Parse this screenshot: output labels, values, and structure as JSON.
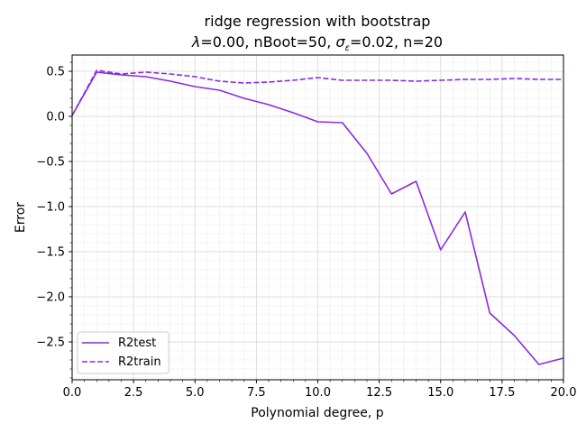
{
  "chart_data": {
    "type": "line",
    "title_line1": "ridge regression with bootstrap",
    "title_line2": "λ=0.00,  nBoot=50,  σε=0.02,  n=20",
    "title_lambda_sym": "λ",
    "title_lambda_rest": "=0.00,  nBoot=50,  ",
    "title_sigma_sym": "σ",
    "title_sigma_sub": "ε",
    "title_sigma_rest": "=0.02,  n=20",
    "xlabel": "Polynomial degree, p",
    "ylabel": "Error",
    "xlim": [
      0,
      20
    ],
    "ylim": [
      -2.92,
      0.68
    ],
    "xticks": [
      0.0,
      2.5,
      5.0,
      7.5,
      10.0,
      12.5,
      15.0,
      17.5,
      20.0
    ],
    "xtick_labels": [
      "0.0",
      "2.5",
      "5.0",
      "7.5",
      "10.0",
      "12.5",
      "15.0",
      "17.5",
      "20.0"
    ],
    "yticks": [
      0.5,
      0.0,
      -0.5,
      -1.0,
      -1.5,
      -2.0,
      -2.5
    ],
    "ytick_labels": [
      "0.5",
      "0.0",
      "−0.5",
      "−1.0",
      "−1.5",
      "−2.0",
      "−2.5"
    ],
    "grid": true,
    "legend_position": "lower-left",
    "color": "#8a2be2",
    "x": [
      0,
      1,
      2,
      3,
      4,
      5,
      6,
      7,
      8,
      9,
      10,
      11,
      12,
      13,
      14,
      15,
      16,
      17,
      18,
      19,
      20
    ],
    "series": [
      {
        "name": "R2test",
        "style": "solid",
        "values": [
          0.01,
          0.49,
          0.46,
          0.44,
          0.39,
          0.33,
          0.29,
          0.2,
          0.13,
          0.04,
          -0.06,
          -0.07,
          -0.41,
          -0.86,
          -0.72,
          -1.48,
          -1.06,
          -2.18,
          -2.43,
          -2.75,
          -2.68
        ]
      },
      {
        "name": "R2train",
        "style": "dashed",
        "values": [
          0.01,
          0.51,
          0.47,
          0.49,
          0.47,
          0.44,
          0.39,
          0.37,
          0.38,
          0.4,
          0.43,
          0.4,
          0.4,
          0.4,
          0.39,
          0.4,
          0.41,
          0.41,
          0.42,
          0.41,
          0.41
        ]
      }
    ]
  }
}
